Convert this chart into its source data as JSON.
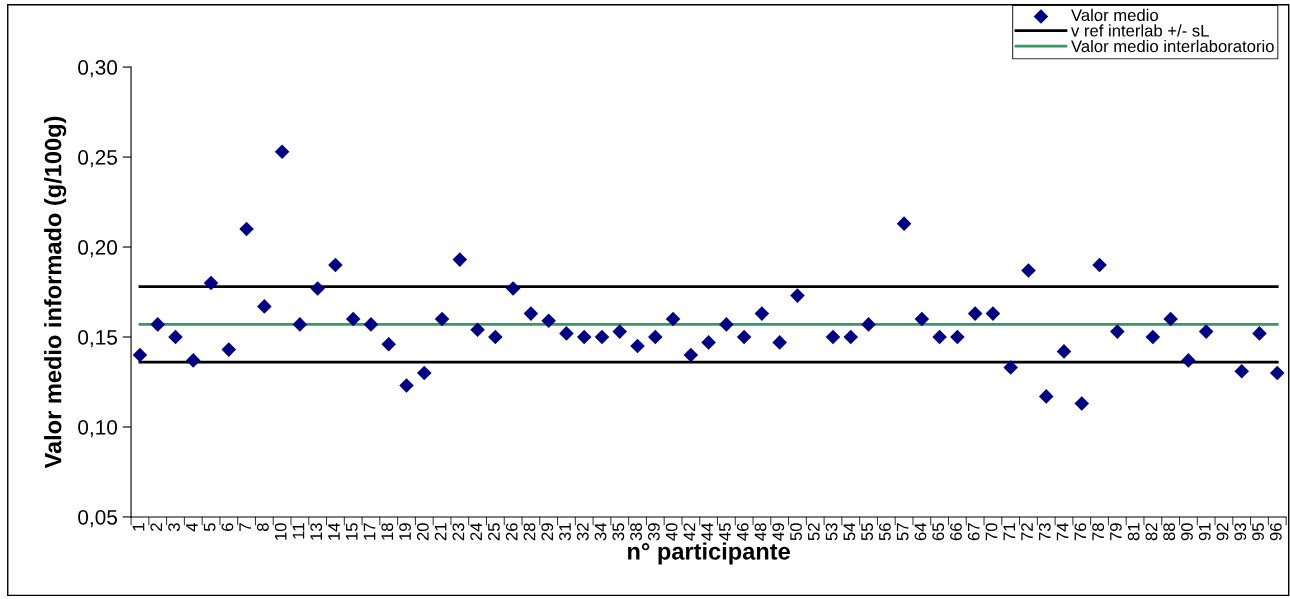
{
  "chart_data": {
    "type": "scatter",
    "xlabel": "n° participante",
    "ylabel": "Valor medio informado (g/100g)",
    "categories": [
      "1",
      "2",
      "3",
      "4",
      "5",
      "6",
      "7",
      "8",
      "10",
      "11",
      "13",
      "14",
      "15",
      "17",
      "18",
      "19",
      "20",
      "21",
      "23",
      "24",
      "25",
      "26",
      "28",
      "29",
      "31",
      "32",
      "34",
      "35",
      "38",
      "39",
      "40",
      "42",
      "44",
      "45",
      "46",
      "48",
      "49",
      "50",
      "52",
      "53",
      "54",
      "55",
      "56",
      "57",
      "64",
      "65",
      "66",
      "67",
      "70",
      "71",
      "72",
      "73",
      "74",
      "76",
      "78",
      "79",
      "81",
      "82",
      "88",
      "90",
      "91",
      "92",
      "93",
      "95",
      "96"
    ],
    "series": [
      {
        "name": "Valor medio",
        "color": "#000080",
        "values": [
          0.14,
          0.157,
          0.15,
          0.137,
          0.18,
          0.143,
          0.21,
          0.167,
          0.253,
          0.157,
          0.177,
          0.19,
          0.16,
          0.157,
          0.146,
          0.123,
          0.13,
          0.16,
          0.193,
          0.154,
          0.15,
          0.177,
          0.163,
          0.159,
          0.152,
          0.15,
          0.15,
          0.153,
          0.145,
          0.15,
          0.16,
          0.14,
          0.147,
          0.157,
          0.15,
          0.163,
          0.147,
          0.173,
          null,
          0.15,
          0.15,
          0.157,
          null,
          0.213,
          0.16,
          0.15,
          0.15,
          0.163,
          0.163,
          0.133,
          0.187,
          0.117,
          0.142,
          0.113,
          0.19,
          0.153,
          null,
          0.15,
          0.16,
          0.137,
          0.153,
          null,
          0.131,
          0.152,
          0.13
        ]
      }
    ],
    "ref_lines": [
      {
        "axis": "y",
        "value": 0.178,
        "label": "v ref interlab +/- sL",
        "color": "#000000"
      },
      {
        "axis": "y",
        "value": 0.136,
        "color": "#000000"
      },
      {
        "axis": "y",
        "value": 0.157,
        "label": "Valor medio interlaboratorio",
        "color": "#339966"
      }
    ],
    "ylim": [
      0.05,
      0.3
    ],
    "yticks": [
      {
        "value": 0.05,
        "label": "0,05"
      },
      {
        "value": 0.1,
        "label": "0,10"
      },
      {
        "value": 0.15,
        "label": "0,15"
      },
      {
        "value": 0.2,
        "label": "0,20"
      },
      {
        "value": 0.25,
        "label": "0,25"
      },
      {
        "value": 0.3,
        "label": "0,30"
      }
    ],
    "marker": "diamond",
    "legend": "top right",
    "grid": false
  }
}
